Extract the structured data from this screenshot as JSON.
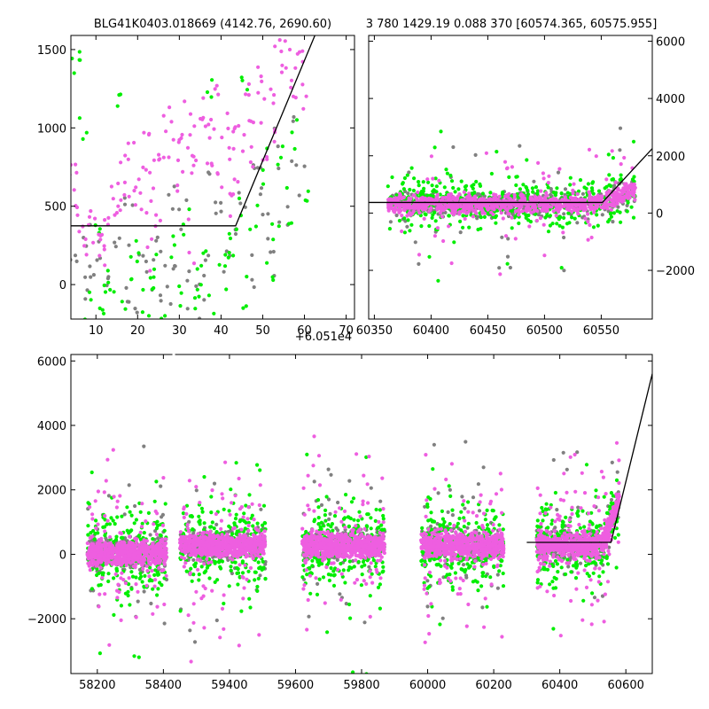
{
  "title_left": "BLG41K0403.018669 (4142.76, 2690.60)",
  "title_right": "3 780 1429.19 0.088 370 [60574.365, 60575.955]",
  "colors": {
    "green": "#00ee00",
    "gray": "#808080",
    "magenta": "#ee5ee0",
    "line": "#000000"
  },
  "chart_data": [
    {
      "type": "scatter",
      "panel": "top-left",
      "xlim": [
        60514,
        60582
      ],
      "ylim": [
        -220,
        1590
      ],
      "x_offset_label": "+6.051e4",
      "xtick_values": [
        60520,
        60530,
        60540,
        60550,
        60560,
        60570,
        60580
      ],
      "xtick_labels": [
        "10",
        "20",
        "30",
        "40",
        "50",
        "60",
        "70"
      ],
      "yticks": [
        0,
        500,
        1000,
        1500
      ],
      "series": [
        {
          "color": "#808080",
          "values": [
            [
              60515,
              140
            ],
            [
              60517,
              -80
            ],
            [
              60519,
              90
            ],
            [
              60521,
              220
            ],
            [
              60523,
              -40
            ],
            [
              60525,
              310
            ],
            [
              60527,
              60
            ],
            [
              60529,
              -120
            ],
            [
              60531,
              180
            ],
            [
              60533,
              20
            ],
            [
              60535,
              250
            ],
            [
              60537,
              -60
            ],
            [
              60539,
              130
            ],
            [
              60541,
              360
            ],
            [
              60543,
              40
            ],
            [
              60545,
              -30
            ],
            [
              60547,
              210
            ],
            [
              60549,
              420
            ],
            [
              60551,
              80
            ],
            [
              60553,
              300
            ],
            [
              60555,
              520
            ],
            [
              60557,
              160
            ],
            [
              60559,
              640
            ],
            [
              60561,
              380
            ],
            [
              60563,
              840
            ],
            [
              60565,
              460
            ],
            [
              60567,
              980
            ],
            [
              60569,
              720
            ],
            [
              60518,
              330
            ],
            [
              60528,
              520
            ],
            [
              60538,
              460
            ],
            [
              60548,
              610
            ],
            [
              60558,
              740
            ],
            [
              60536,
              -150
            ],
            [
              60544,
              -190
            ],
            [
              60562,
              190
            ]
          ]
        },
        {
          "color": "#00ee00",
          "values": [
            [
              60514,
              1300
            ],
            [
              60516,
              1430
            ],
            [
              60518,
              -180
            ],
            [
              60520,
              400
            ],
            [
              60522,
              -60
            ],
            [
              60524,
              30
            ],
            [
              60526,
              -170
            ],
            [
              60528,
              90
            ],
            [
              60530,
              210
            ],
            [
              60532,
              -120
            ],
            [
              60534,
              60
            ],
            [
              60536,
              -200
            ],
            [
              60538,
              180
            ],
            [
              60540,
              -90
            ],
            [
              60542,
              330
            ],
            [
              60544,
              -40
            ],
            [
              60546,
              140
            ],
            [
              60548,
              -150
            ],
            [
              60550,
              260
            ],
            [
              60552,
              60
            ],
            [
              60554,
              460
            ],
            [
              60556,
              -80
            ],
            [
              60558,
              500
            ],
            [
              60560,
              700
            ],
            [
              60562,
              120
            ],
            [
              60564,
              860
            ],
            [
              60566,
              420
            ],
            [
              60568,
              1040
            ],
            [
              60570,
              560
            ],
            [
              60517,
              960
            ],
            [
              60525,
              1140
            ],
            [
              60547,
              1280
            ],
            [
              60556,
              1290
            ],
            [
              60563,
              330
            ],
            [
              60521,
              -100
            ],
            [
              60533,
              -20
            ],
            [
              60553,
              290
            ],
            [
              60545,
              40
            ]
          ]
        },
        {
          "color": "#ee5ee0",
          "values": [
            [
              60514,
              600
            ],
            [
              60515,
              760
            ],
            [
              60516,
              470
            ],
            [
              60517,
              300
            ],
            [
              60518,
              250
            ],
            [
              60519,
              420
            ],
            [
              60520,
              200
            ],
            [
              60521,
              360
            ],
            [
              60522,
              180
            ],
            [
              60524,
              520
            ],
            [
              60525,
              450
            ],
            [
              60526,
              720
            ],
            [
              60527,
              610
            ],
            [
              60528,
              880
            ],
            [
              60529,
              560
            ],
            [
              60530,
              640
            ],
            [
              60531,
              700
            ],
            [
              60532,
              900
            ],
            [
              60533,
              520
            ],
            [
              60534,
              780
            ],
            [
              60535,
              440
            ],
            [
              60536,
              880
            ],
            [
              60537,
              960
            ],
            [
              60538,
              1100
            ],
            [
              60539,
              820
            ],
            [
              60540,
              690
            ],
            [
              60541,
              980
            ],
            [
              60542,
              1080
            ],
            [
              60543,
              700
            ],
            [
              60544,
              880
            ],
            [
              60545,
              1150
            ],
            [
              60546,
              1020
            ],
            [
              60547,
              740
            ],
            [
              60548,
              960
            ],
            [
              60549,
              1170
            ],
            [
              60550,
              680
            ],
            [
              60551,
              940
            ],
            [
              60552,
              780
            ],
            [
              60553,
              1010
            ],
            [
              60554,
              610
            ],
            [
              60555,
              880
            ],
            [
              60556,
              1220
            ],
            [
              60557,
              1040
            ],
            [
              60558,
              780
            ],
            [
              60559,
              1330
            ],
            [
              60560,
              1110
            ],
            [
              60561,
              870
            ],
            [
              60562,
              1200
            ],
            [
              60563,
              920
            ],
            [
              60564,
              1450
            ],
            [
              60565,
              1340
            ],
            [
              60566,
              1580
            ],
            [
              60567,
              1230
            ],
            [
              60568,
              1400
            ],
            [
              60569,
              1490
            ],
            [
              60570,
              1180
            ],
            [
              60523,
              320
            ],
            [
              60533,
              260
            ],
            [
              60543,
              310
            ],
            [
              60553,
              520
            ]
          ]
        }
      ],
      "model_line": [
        [
          60514,
          375
        ],
        [
          60553.5,
          375
        ],
        [
          60572.5,
          1590
        ]
      ]
    },
    {
      "type": "scatter",
      "panel": "top-right",
      "xlim": [
        60345,
        60595
      ],
      "ylim": [
        -3700,
        6200
      ],
      "xticks": [
        60350,
        60400,
        60450,
        60500,
        60550
      ],
      "yticks": [
        -2000,
        0,
        2000,
        4000,
        6000
      ],
      "model_line": [
        [
          60345,
          370
        ],
        [
          60551,
          370
        ],
        [
          60595,
          2250
        ]
      ]
    },
    {
      "type": "scatter",
      "panel": "bottom",
      "xlim": [
        58120,
        60680
      ],
      "ylim": [
        -3700,
        6200
      ],
      "xticks": [
        58200,
        58400,
        59400,
        59600,
        59800,
        60000,
        60200,
        60400,
        60600
      ],
      "yticks": [
        -2000,
        0,
        2000,
        4000,
        6000
      ],
      "axis_break": [
        58430,
        59230
      ],
      "seasons": [
        [
          58170,
          58410
        ],
        [
          59250,
          59510
        ],
        [
          59620,
          59870
        ],
        [
          59980,
          60230
        ],
        [
          60330,
          60580
        ]
      ],
      "model_line": [
        [
          60300,
          370
        ],
        [
          60555,
          370
        ],
        [
          60680,
          5600
        ]
      ]
    }
  ]
}
